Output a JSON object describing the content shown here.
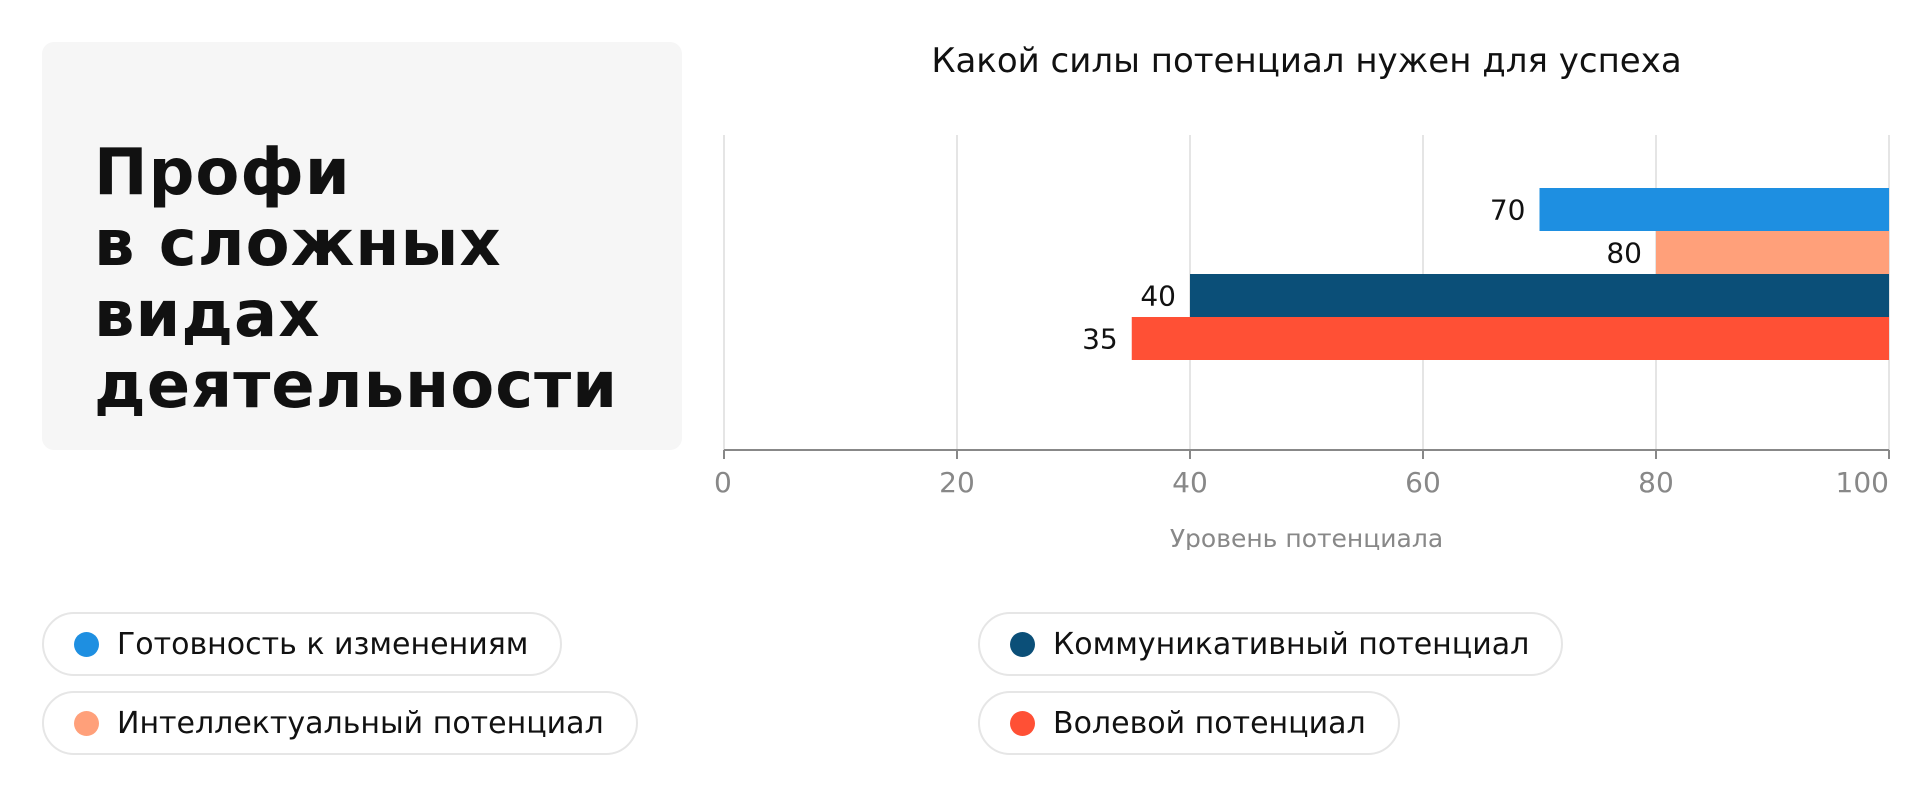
{
  "heading": {
    "lines": [
      "Профи",
      "в сложных",
      "видах",
      "деятельности"
    ]
  },
  "chart_data": {
    "type": "bar",
    "orientation": "horizontal",
    "title": "Какой силы потенциал нужен для успеха",
    "xlabel": "Уровень потенциала",
    "ylabel": "",
    "xlim": [
      0,
      100
    ],
    "xticks": [
      0,
      20,
      40,
      60,
      80,
      100
    ],
    "grid": true,
    "bars_extend_to": 100,
    "series": [
      {
        "name": "Готовность к изменениям",
        "value": 70,
        "color": "#1e8fe1"
      },
      {
        "name": "Интеллектуальный потенциал",
        "value": 80,
        "color": "#ffa07a"
      },
      {
        "name": "Коммуникативный потенциал",
        "value": 40,
        "color": "#0b4f78"
      },
      {
        "name": "Волевой потенциал",
        "value": 35,
        "color": "#ff5035"
      }
    ],
    "legend_position": "bottom"
  },
  "colors": {
    "card_background": "#f6f6f6",
    "grid": "#e5e5e5",
    "axis": "#888888",
    "tick_label": "#888888"
  }
}
